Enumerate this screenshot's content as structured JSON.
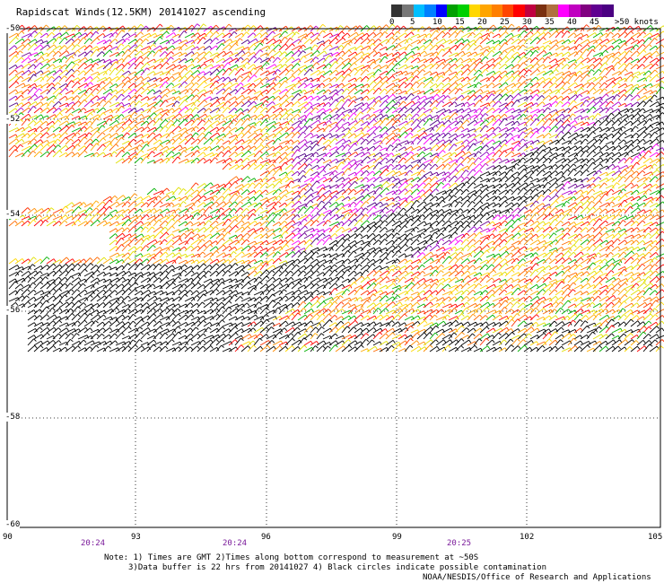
{
  "title": "Rapidscat Winds(12.5KM) 20141027 ascending",
  "color_scale": {
    "labels": [
      "0",
      "5",
      "10",
      "15",
      "20",
      "25",
      "30",
      "35",
      "40",
      "45",
      ">50 knots"
    ],
    "colors": [
      "#333333",
      "#777777",
      "#00bfff",
      "#0080ff",
      "#0000ff",
      "#00a000",
      "#00d000",
      "#ffd700",
      "#ffa500",
      "#ff7f00",
      "#ff4500",
      "#ff0000",
      "#c00040",
      "#7a3010",
      "#b07040",
      "#ff00ff",
      "#c000c0",
      "#800080",
      "#600090",
      "#4b0082"
    ]
  },
  "axes": {
    "lat_labels": [
      "-50",
      "-52",
      "-54",
      "-56",
      "-58",
      "-60"
    ],
    "lon_labels": [
      "90",
      "93",
      "96",
      "99",
      "102",
      "105"
    ],
    "time_labels": [
      "20:24",
      "20:24",
      "20:25"
    ]
  },
  "notes": {
    "line1": "Note: 1) Times are GMT 2)Times along bottom correspond to measurement at ~50S",
    "line2": "3)Data buffer is 22 hrs from 20141027 4) Black circles indicate possible contamination",
    "credit": "NOAA/NESDIS/Office of Research and Applications"
  }
}
